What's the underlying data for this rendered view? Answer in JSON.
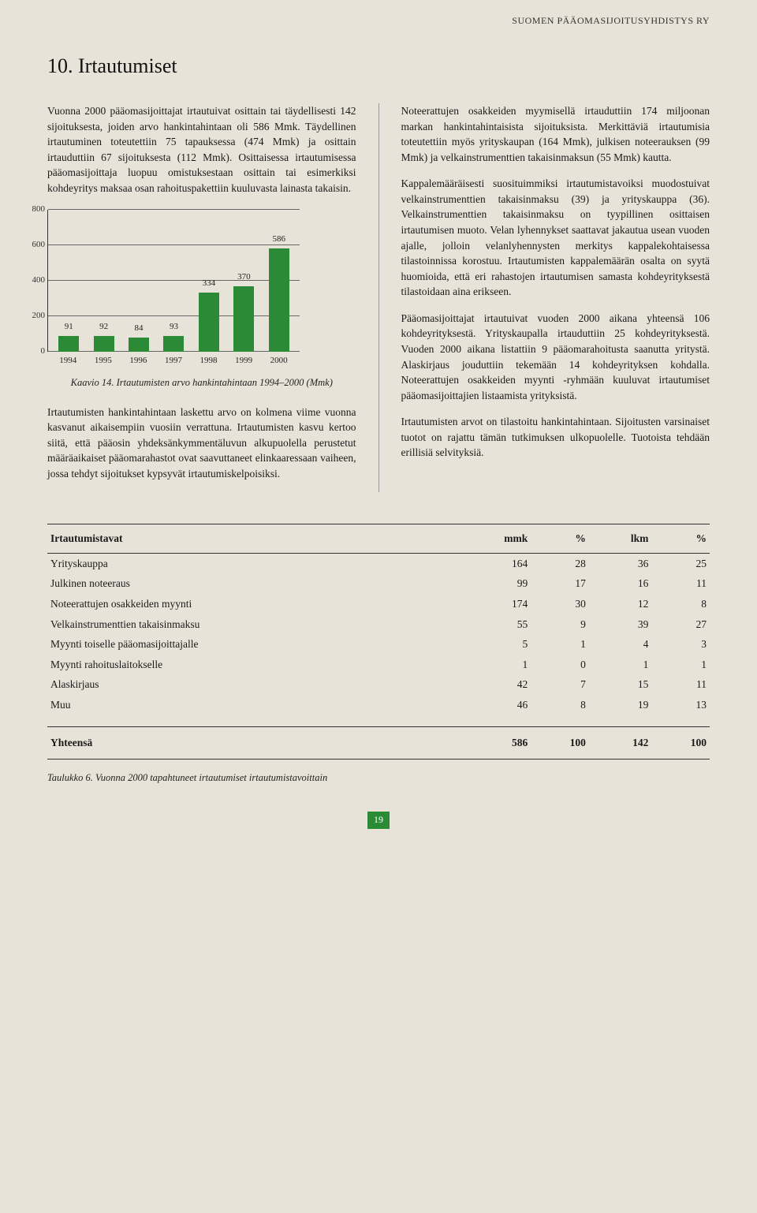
{
  "running_header": "SUOMEN PÄÄOMASIJOITUSYHDISTYS RY",
  "section_title": "10. Irtautumiset",
  "left_col": {
    "p1": "Vuonna 2000 pääomasijoittajat irtautuivat osittain tai täydellisesti 142 sijoituksesta, joiden arvo hankintahintaan oli 586 Mmk. Täydellinen irtautuminen toteutettiin 75 tapauksessa (474 Mmk) ja osittain irtauduttiin 67 sijoituksesta (112 Mmk). Osittaisessa irtautumisessa pääomasijoittaja luopuu omistuksestaan osittain tai esimerkiksi kohdeyritys maksaa osan rahoituspakettiin kuuluvasta lainasta takaisin.",
    "p2": "Irtautumisten hankintahintaan laskettu arvo on kolmena viime vuonna kasvanut aikaisempiin vuosiin verrattuna. Irtautumisten kasvu kertoo siitä, että pääosin yhdeksänkymmentäluvun alkupuolella perustetut määräaikaiset pääomarahastot ovat saavuttaneet elinkaaressaan vaiheen, jossa tehdyt sijoitukset kypsyvät irtautumiskelpoisiksi."
  },
  "right_col": {
    "p1": "Noteerattujen osakkeiden myymisellä irtauduttiin 174 miljoonan markan hankintahintaisista sijoituksista. Merkittäviä irtautumisia toteutettiin myös yrityskaupan (164 Mmk), julkisen noteerauksen (99 Mmk) ja velkainstrumenttien takaisinmaksun (55 Mmk) kautta.",
    "p2": "Kappalemääräisesti suosituimmiksi irtautumistavoiksi muodostuivat velkainstrumenttien takaisinmaksu (39) ja yrityskauppa (36). Velkainstrumenttien takaisinmaksu on tyypillinen osittaisen irtautumisen muoto. Velan lyhennykset saattavat jakautua usean vuoden ajalle, jolloin velanlyhennysten merkitys kappalekohtaisessa tilastoinnissa korostuu. Irtautumisten kappalemäärän osalta on syytä huomioida, että eri rahastojen irtautumisen samasta kohdeyrityksestä tilastoidaan aina erikseen.",
    "p3": "Pääomasijoittajat irtautuivat vuoden 2000 aikana yhteensä 106 kohdeyrityksestä. Yrityskaupalla irtauduttiin 25 kohdeyrityksestä. Vuoden 2000 aikana listattiin 9 pääomarahoitusta saanutta yritystä. Alaskirjaus jouduttiin tekemään 14 kohdeyrityksen kohdalla. Noteerattujen osakkeiden myynti -ryhmään kuuluvat irtautumiset pääomasijoittajien listaamista yrityksistä.",
    "p4": "Irtautumisten arvot on tilastoitu hankintahintaan. Sijoitusten varsinaiset tuotot on rajattu tämän tutkimuksen ulkopuolelle. Tuotoista tehdään erillisiä selvityksiä."
  },
  "chart": {
    "type": "bar",
    "categories": [
      "1994",
      "1995",
      "1996",
      "1997",
      "1998",
      "1999",
      "2000"
    ],
    "values": [
      91,
      92,
      84,
      93,
      334,
      370,
      586
    ],
    "bar_color": "#2a8a35",
    "ylim_max": 800,
    "ytick_step": 200,
    "yticks": [
      0,
      200,
      400,
      600,
      800
    ],
    "grid_color": "#666666",
    "label_fontsize": 11,
    "caption": "Kaavio 14. Irtautumisten arvo hankintahintaan 1994–2000 (Mmk)"
  },
  "table": {
    "columns": [
      "Irtautumistavat",
      "mmk",
      "%",
      "lkm",
      "%"
    ],
    "rows": [
      [
        "Yrityskauppa",
        "164",
        "28",
        "36",
        "25"
      ],
      [
        "Julkinen noteeraus",
        "99",
        "17",
        "16",
        "11"
      ],
      [
        "Noteerattujen osakkeiden myynti",
        "174",
        "30",
        "12",
        "8"
      ],
      [
        "Velkainstrumenttien takaisinmaksu",
        "55",
        "9",
        "39",
        "27"
      ],
      [
        "Myynti toiselle pääomasijoittajalle",
        "5",
        "1",
        "4",
        "3"
      ],
      [
        "Myynti rahoituslaitokselle",
        "1",
        "0",
        "1",
        "1"
      ],
      [
        "Alaskirjaus",
        "42",
        "7",
        "15",
        "11"
      ],
      [
        "Muu",
        "46",
        "8",
        "19",
        "13"
      ]
    ],
    "total_row": [
      "Yhteensä",
      "586",
      "100",
      "142",
      "100"
    ],
    "caption": "Taulukko 6. Vuonna 2000 tapahtuneet irtautumiset irtautumistavoittain"
  },
  "page_number": "19"
}
